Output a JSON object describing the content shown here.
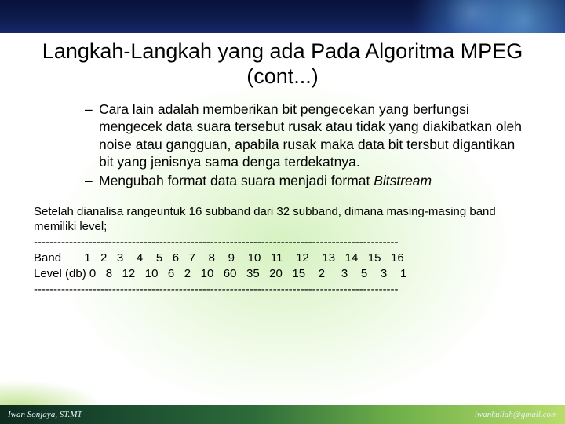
{
  "slide": {
    "title": "Langkah-Langkah yang ada Pada Algoritma MPEG (cont...)",
    "bullets": [
      "Cara lain adalah memberikan bit pengecekan yang berfungsi mengecek data suara tersebut rusak atau tidak yang diakibatkan oleh noise atau gangguan, apabila rusak maka data bit tersbut digantikan bit yang jenisnya sama denga terdekatnya.",
      "Mengubah format data suara menjadi format "
    ],
    "bullet2_italic": "Bitstream",
    "analysis_intro": "Setelah dianalisa rangeuntuk 16 subband dari 32 subband, dimana masing-masing band memiliki level;",
    "divider": "---------------------------------------------------------------------------------------------",
    "table": {
      "row1_label": "Band",
      "row2_label": "Level (db)",
      "bands": [
        "1",
        "2",
        "3",
        "4",
        "5",
        "6",
        "7",
        "8",
        "9",
        "10",
        "11",
        "12",
        "13",
        "14",
        "15",
        "16"
      ],
      "levels": [
        "0",
        "8",
        "12",
        "10",
        "6",
        "2",
        "10",
        "60",
        "35",
        "20",
        "15",
        "2",
        "3",
        "5",
        "3",
        "1"
      ]
    },
    "footer": {
      "left": "Iwan Sonjaya, ST.MT",
      "right": "iwankuliah@gmail.com"
    }
  },
  "style": {
    "title_fontsize": 27,
    "body_fontsize": 17.5,
    "analysis_fontsize": 15,
    "footer_fontsize": 11,
    "text_color": "#000000",
    "topbar_gradient": [
      "#08123a",
      "#16286a"
    ],
    "footer_gradient": [
      "#0e2a1e",
      "#b8dd6a"
    ],
    "bg_radial_tint": "#b4e68c"
  }
}
